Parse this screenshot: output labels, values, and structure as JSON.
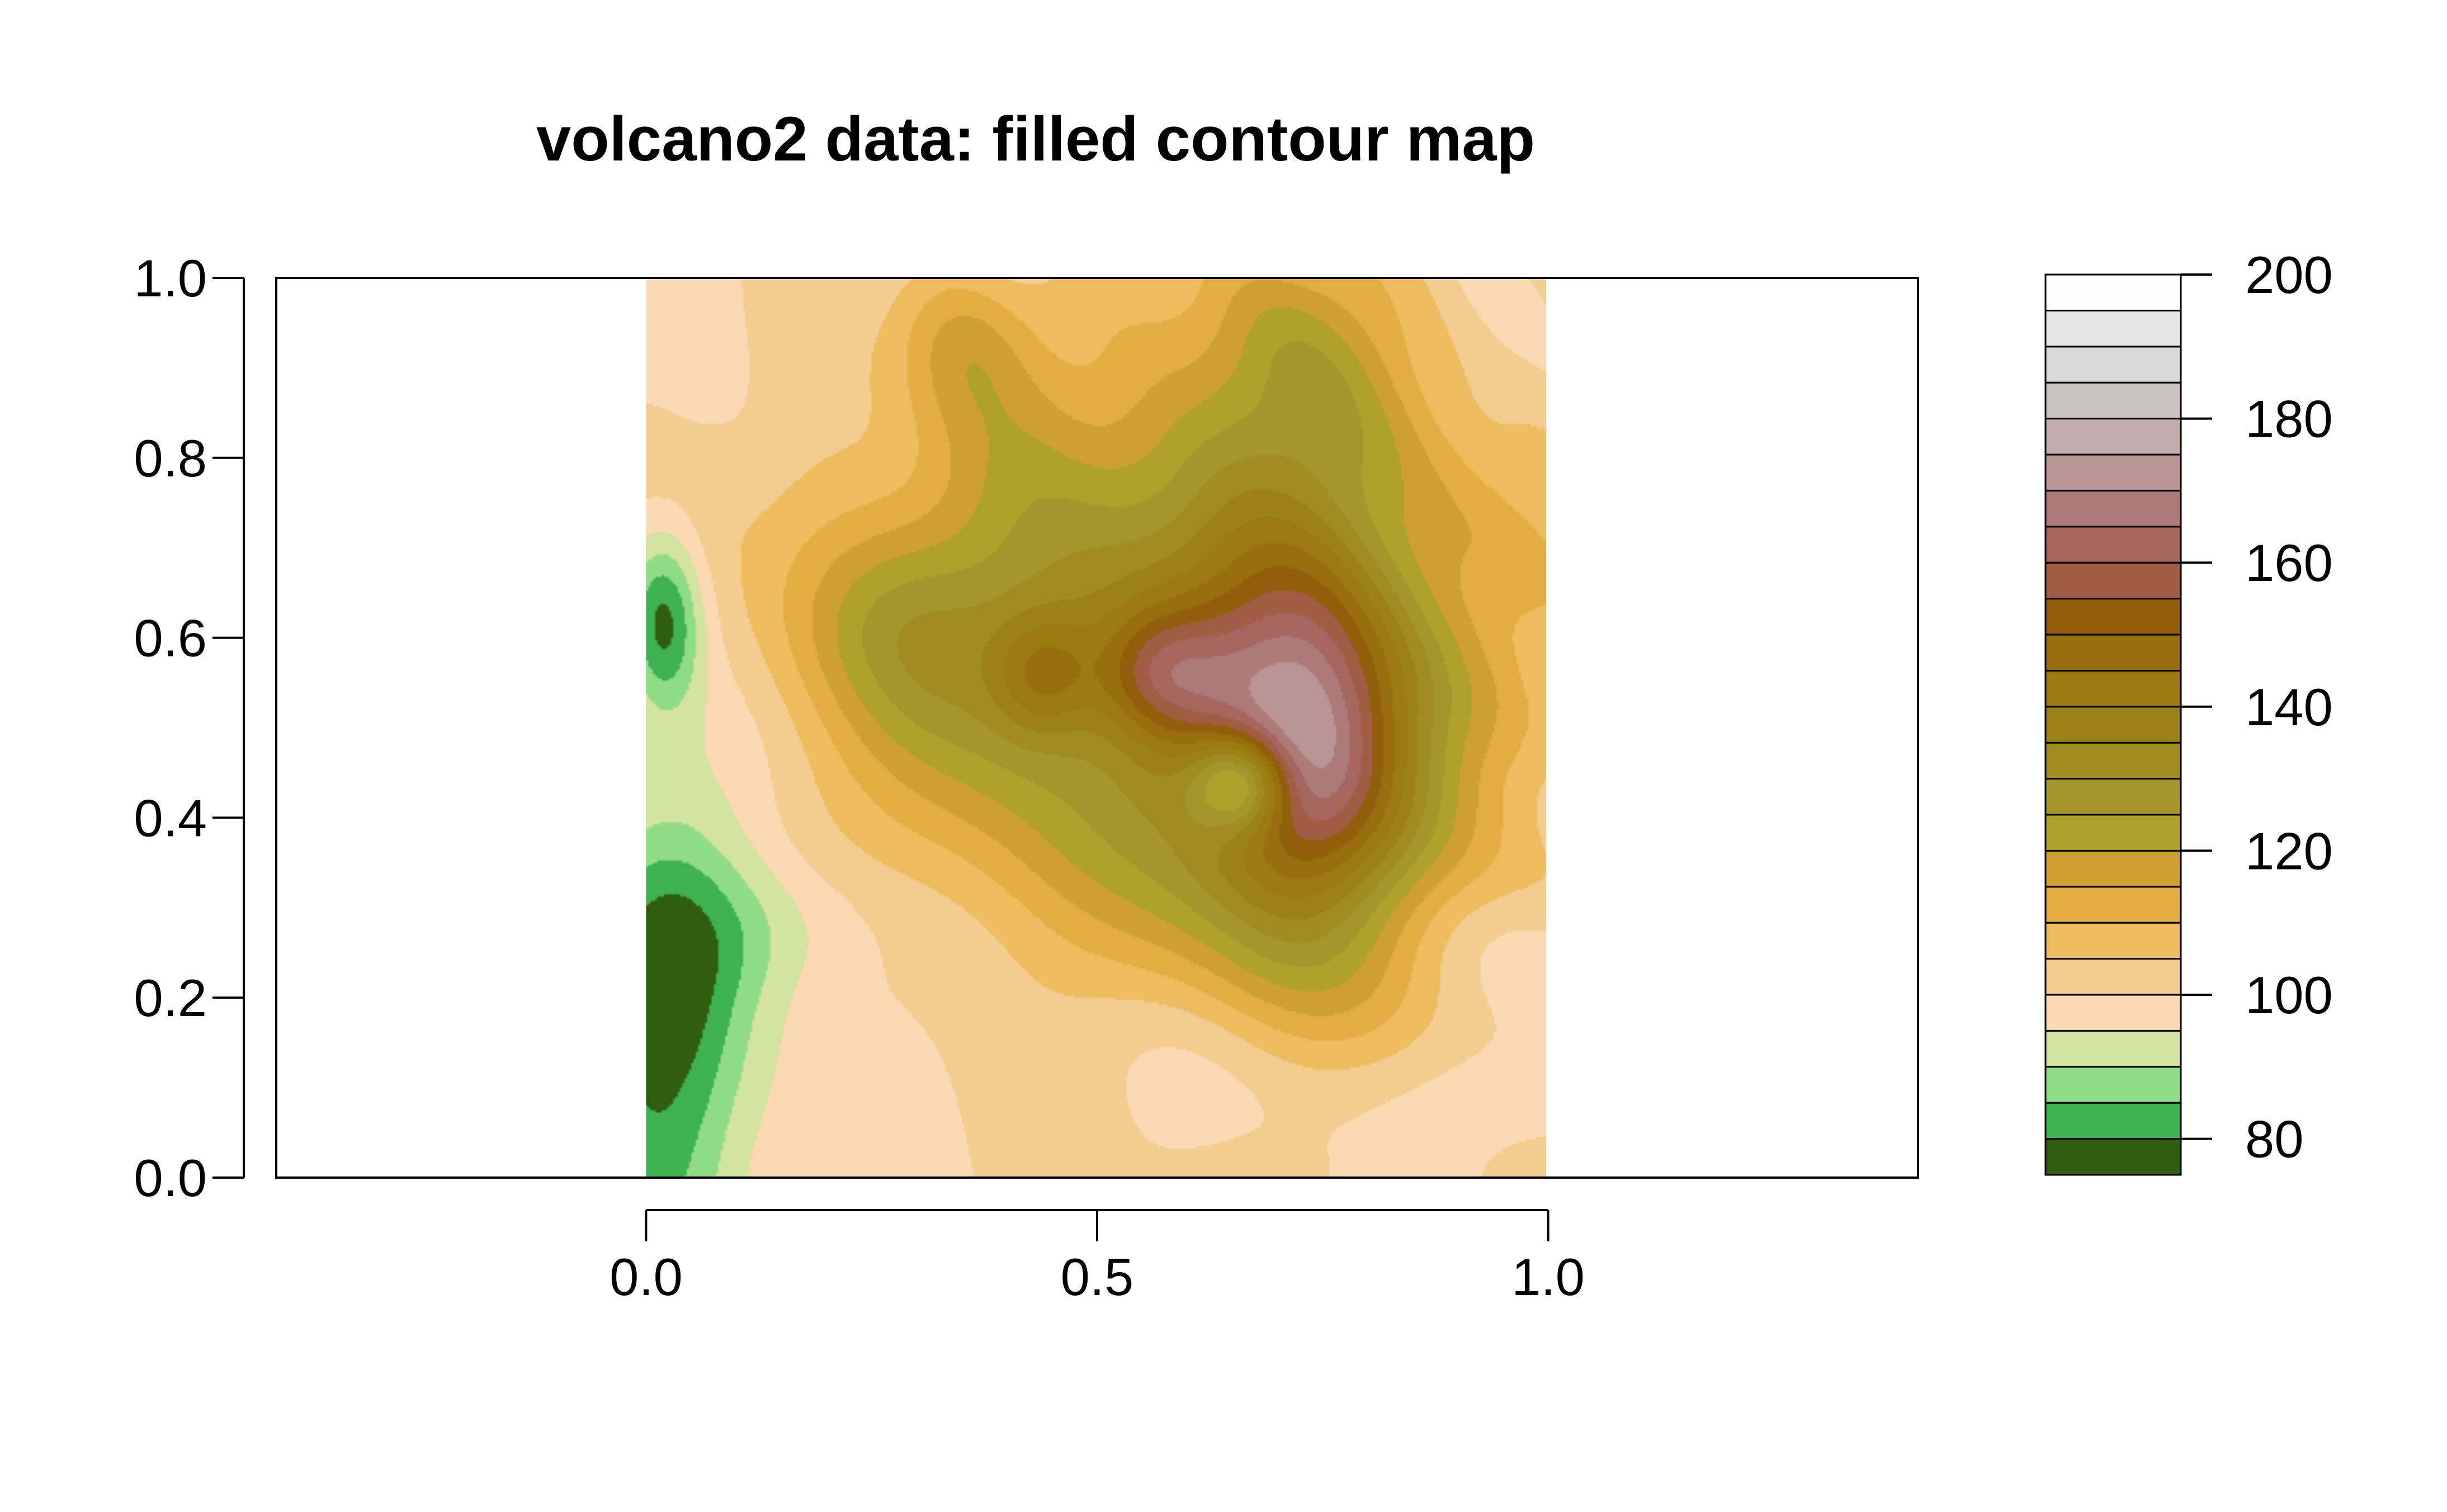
{
  "chart_data": {
    "type": "heatmap",
    "title": "volcano2 data: filled contour map",
    "xlabel": "",
    "ylabel": "",
    "xlim": [
      -0.41,
      1.41
    ],
    "ylim": [
      0.0,
      1.0
    ],
    "data_xlim": [
      0.0,
      1.0
    ],
    "data_ylim": [
      0.0,
      1.0
    ],
    "x_ticks": [
      0.0,
      0.5,
      1.0
    ],
    "x_tick_labels": [
      "0.0",
      "0.5",
      "1.0"
    ],
    "y_ticks": [
      0.0,
      0.2,
      0.4,
      0.6,
      0.8,
      1.0
    ],
    "y_tick_labels": [
      "0.0",
      "0.2",
      "0.4",
      "0.6",
      "0.8",
      "1.0"
    ],
    "legend": {
      "placement": "right",
      "range": [
        75,
        200
      ],
      "levels": [
        75,
        80,
        85,
        90,
        95,
        100,
        105,
        110,
        115,
        120,
        125,
        130,
        135,
        140,
        145,
        150,
        155,
        160,
        165,
        170,
        175,
        180,
        185,
        190,
        195,
        200
      ],
      "tick_values": [
        80,
        100,
        120,
        140,
        160,
        180,
        200
      ],
      "tick_labels": [
        "80",
        "100",
        "120",
        "140",
        "160",
        "180",
        "200"
      ],
      "colors": [
        "#2f5e0e",
        "#3eb150",
        "#8fdc86",
        "#d3e3a0",
        "#fbd9b2",
        "#f3cc8f",
        "#eebb5e",
        "#e2ae42",
        "#cea032",
        "#b0a02c",
        "#a4962a",
        "#a08c21",
        "#9c8117",
        "#9c7a10",
        "#986e0e",
        "#915f0b",
        "#a05d43",
        "#a66660",
        "#ae7a78",
        "#b99695",
        "#c2adac",
        "#cbc3c3",
        "#d8d8d8",
        "#e6e6e6",
        "#fefefe"
      ]
    },
    "grid": false
  }
}
